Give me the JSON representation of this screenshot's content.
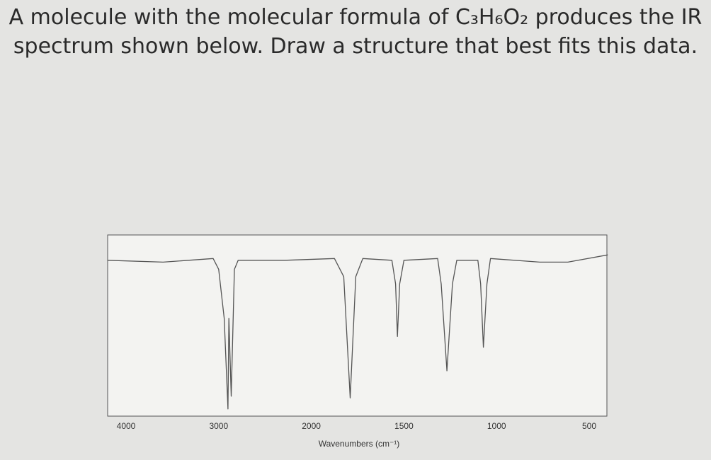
{
  "question": "A molecule with the molecular formula of C₃H₆O₂ produces the IR spectrum shown below. Draw a structure that best fits this data.",
  "chart_data": {
    "type": "line",
    "x_label": "Wavenumbers (cm⁻¹)",
    "xlim": [
      4200,
      400
    ],
    "xticks": [
      4000,
      3000,
      2000,
      1500,
      1000,
      500
    ],
    "ylim": [
      0,
      100
    ],
    "grid": false,
    "series": [
      {
        "color": "#555555",
        "x": [
          4200,
          3600,
          3060,
          3000,
          2940,
          2900,
          2890,
          2865,
          2830,
          2790,
          2286,
          1875,
          1825,
          1790,
          1760,
          1722,
          1565,
          1545,
          1535,
          1523,
          1500,
          1318,
          1299,
          1268,
          1238,
          1215,
          1101,
          1086,
          1071,
          1052,
          1033,
          767,
          615,
          400
        ],
        "values": [
          86,
          85,
          87,
          81,
          54,
          4,
          54,
          11,
          81,
          86,
          86,
          87,
          77,
          10,
          77,
          87,
          86,
          73,
          44,
          73,
          86,
          87,
          73,
          25,
          73,
          86,
          86,
          73,
          38,
          73,
          87,
          85,
          85,
          89
        ]
      }
    ]
  }
}
